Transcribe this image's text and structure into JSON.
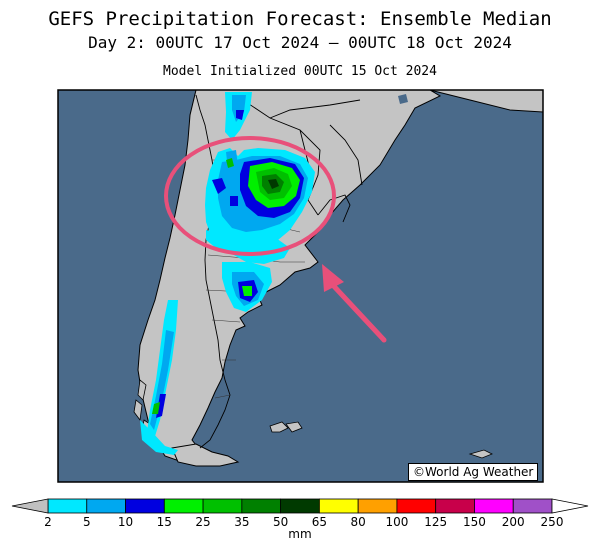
{
  "title": "GEFS Precipitation Forecast: Ensemble Median",
  "subtitle": "Day 2: 00UTC 17 Oct 2024 — 00UTC 18 Oct 2024",
  "init": "Model Initialized 00UTC 15 Oct 2024",
  "credit": "©World Ag Weather",
  "colorbar": {
    "units": "mm",
    "ticks": [
      "2",
      "5",
      "10",
      "15",
      "25",
      "35",
      "50",
      "65",
      "80",
      "100",
      "125",
      "150",
      "200",
      "250"
    ],
    "colors": [
      "#00e8ff",
      "#00a8f0",
      "#0000e0",
      "#00f000",
      "#00c000",
      "#008000",
      "#003a00",
      "#ffff00",
      "#ffa000",
      "#ff0000",
      "#c8004a",
      "#ff00ff",
      "#a050c8"
    ],
    "ends": [
      "#c0c0c0",
      "#ffffff"
    ]
  },
  "colors": {
    "ocean": "#4a6a8a",
    "land": "#c4c4c4",
    "highlight": "#e8507a"
  }
}
